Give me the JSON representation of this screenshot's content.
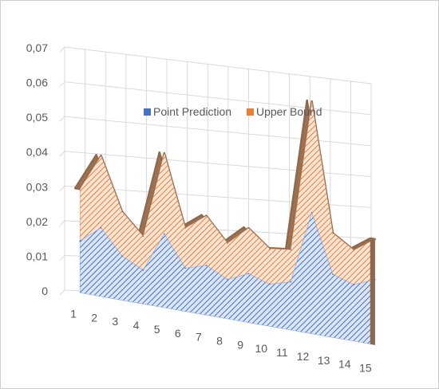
{
  "chart_data": {
    "type": "area",
    "stacked": true,
    "three_d": true,
    "categories": [
      "1",
      "2",
      "3",
      "4",
      "5",
      "6",
      "7",
      "8",
      "9",
      "10",
      "11",
      "12",
      "13",
      "14",
      "15"
    ],
    "ylim": [
      0,
      0.07
    ],
    "yticks": [
      "0",
      "0,01",
      "0,02",
      "0,03",
      "0,04",
      "0,05",
      "0,06",
      "0,07"
    ],
    "grid": true,
    "legend_position": "top-center",
    "series": [
      {
        "name": "Point Prediction",
        "color": "#4472c4",
        "values": [
          0.015,
          0.02,
          0.013,
          0.01,
          0.022,
          0.013,
          0.015,
          0.012,
          0.015,
          0.013,
          0.015,
          0.038,
          0.02,
          0.018,
          0.021
        ]
      },
      {
        "name": "Upper Bound",
        "color": "#ed7d31",
        "values": [
          0.015,
          0.021,
          0.013,
          0.01,
          0.024,
          0.012,
          0.015,
          0.011,
          0.014,
          0.011,
          0.01,
          0.035,
          0.013,
          0.011,
          0.013
        ]
      }
    ]
  }
}
